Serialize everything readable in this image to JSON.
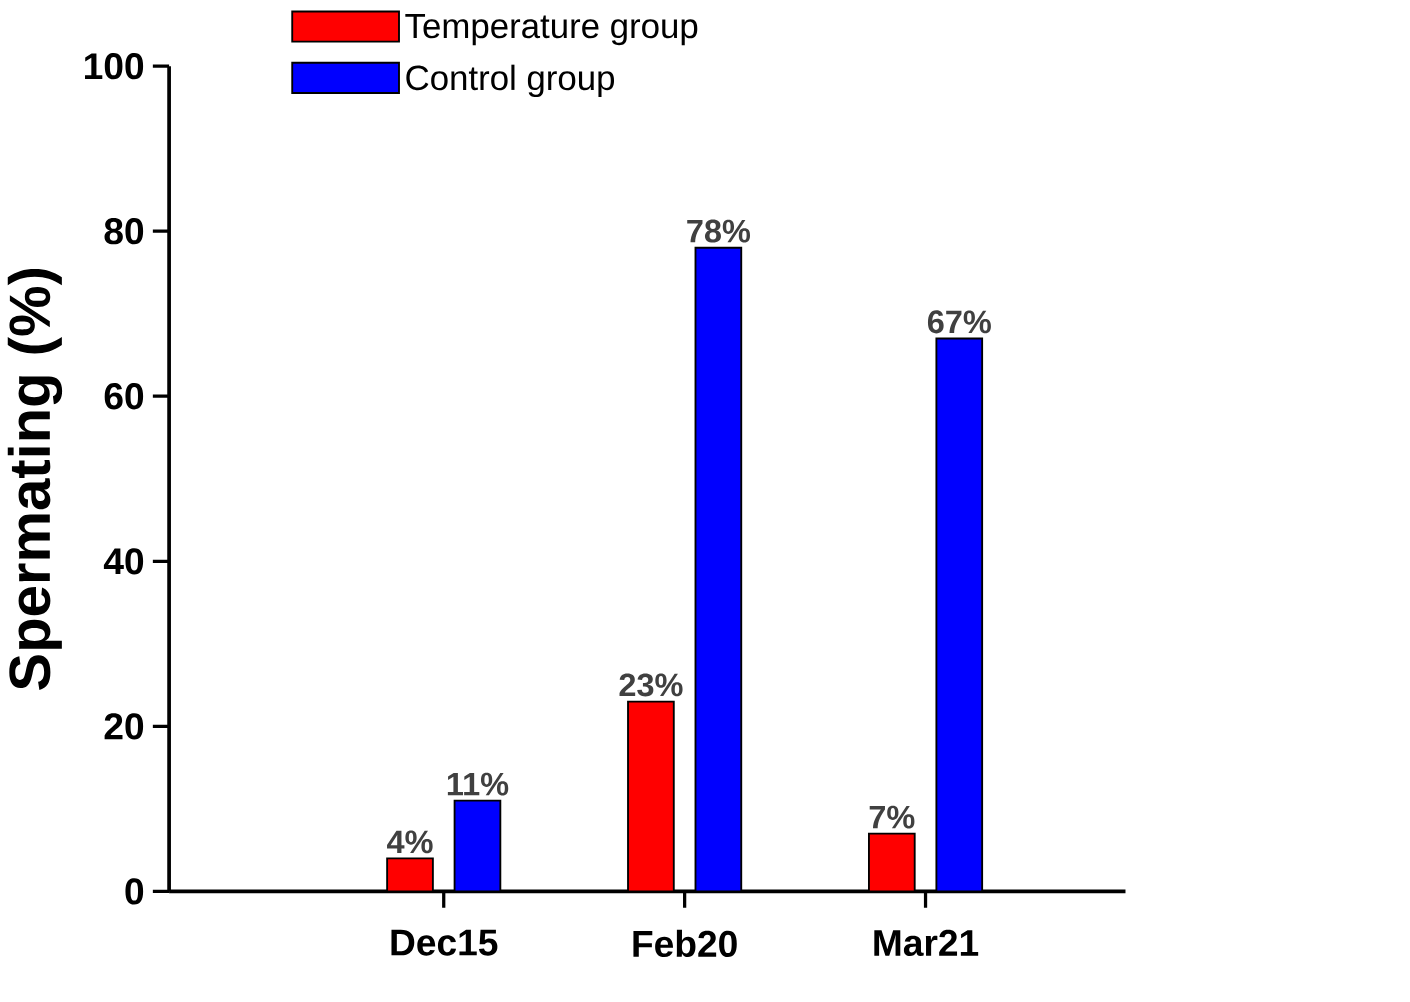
{
  "chart_data": {
    "type": "bar",
    "ylabel": "Spermating (%)",
    "categories": [
      "Dec15",
      "Feb20",
      "Mar21"
    ],
    "series": [
      {
        "name": "Temperature group",
        "color": "#ff0000",
        "values": [
          4,
          23,
          7
        ],
        "value_labels": [
          "4%",
          "23%",
          "7%"
        ]
      },
      {
        "name": "Control group",
        "color": "#0000ff",
        "values": [
          11,
          78,
          67
        ],
        "value_labels": [
          "11%",
          "78%",
          "67%"
        ]
      }
    ],
    "ylim": [
      0,
      100
    ],
    "yticks": [
      0,
      20,
      40,
      60,
      80,
      100
    ],
    "legend": "top"
  }
}
